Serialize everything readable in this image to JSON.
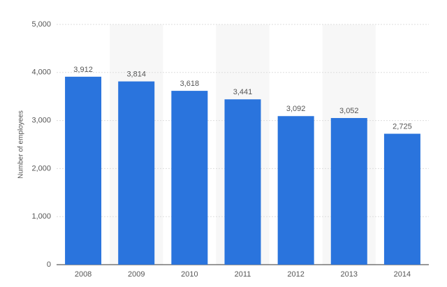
{
  "chart_data": {
    "type": "bar",
    "y_label": "Number of employees",
    "categories": [
      "2008",
      "2009",
      "2010",
      "2011",
      "2012",
      "2013",
      "2014"
    ],
    "values": [
      3912,
      3814,
      3618,
      3441,
      3092,
      3052,
      2725
    ],
    "value_labels": [
      "3,912",
      "3,814",
      "3,618",
      "3,441",
      "3,092",
      "3,052",
      "2,725"
    ],
    "color": "#2a74dd",
    "ylim": [
      0,
      5000
    ],
    "yticks": [
      0,
      {
        "value": 1000,
        "label": "1,000"
      },
      {
        "value": 2000,
        "label": "2,000"
      },
      {
        "value": 3000,
        "label": "3,000"
      },
      {
        "value": 4000,
        "label": "4,000"
      },
      {
        "value": 5000,
        "label": "5,000"
      }
    ],
    "grid": true
  }
}
